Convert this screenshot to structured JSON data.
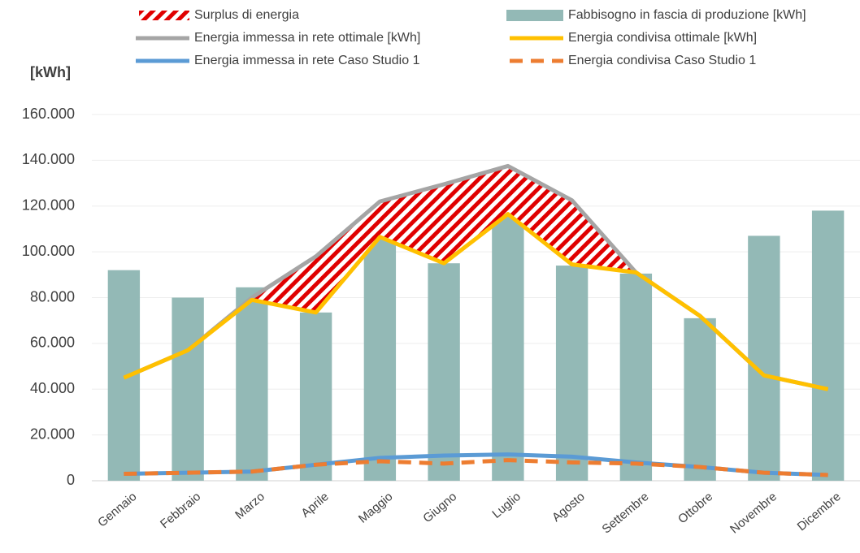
{
  "chart_data": {
    "type": "combo",
    "y_label": "[kWh]",
    "categories": [
      "Gennaio",
      "Febbraio",
      "Marzo",
      "Aprile",
      "Maggio",
      "Giugno",
      "Luglio",
      "Agosto",
      "Settembre",
      "Ottobre",
      "Novembre",
      "Dicembre"
    ],
    "series": [
      {
        "name": "Surplus di energia",
        "type": "area",
        "stacked_on": 3,
        "color": "#e00000",
        "values": [
          0,
          0,
          1000,
          24500,
          15500,
          34500,
          21000,
          28000,
          0,
          0,
          0,
          0
        ]
      },
      {
        "name": "Fabbisogno in fascia di produzione [kWh]",
        "type": "bar",
        "color": "#93b9b6",
        "values": [
          92000,
          80000,
          84500,
          73500,
          106500,
          95000,
          117000,
          94000,
          90500,
          71000,
          107000,
          118000
        ]
      },
      {
        "name": "Energia immessa in rete ottimale [kWh]",
        "type": "line",
        "color": "#a5a5a5",
        "values": [
          45000,
          57000,
          80000,
          98000,
          122000,
          129500,
          137500,
          122500,
          91000,
          72000,
          46000,
          40000
        ]
      },
      {
        "name": "Energia condivisa ottimale [kWh]",
        "type": "line",
        "color": "#ffc000",
        "values": [
          45000,
          57000,
          79000,
          73500,
          106500,
          95000,
          116500,
          94500,
          91000,
          72000,
          46000,
          40000
        ]
      },
      {
        "name": "Energia immessa in rete Caso Studio 1",
        "type": "line",
        "color": "#5b9bd5",
        "values": [
          3000,
          3500,
          4000,
          7000,
          10000,
          11000,
          11500,
          10500,
          8000,
          6000,
          3500,
          2500
        ]
      },
      {
        "name": "Energia condivisa Caso Studio 1",
        "type": "dashed",
        "color": "#ed7d31",
        "values": [
          3000,
          3500,
          4000,
          7000,
          8500,
          7500,
          9000,
          8000,
          7500,
          6000,
          3500,
          2500
        ]
      }
    ],
    "ylim": [
      0,
      160000
    ],
    "yticks": [
      0,
      {
        "value": 20000,
        "label": "20.000"
      },
      {
        "value": 40000,
        "label": "40.000"
      },
      {
        "value": 60000,
        "label": "60.000"
      },
      {
        "value": 80000,
        "label": "80.000"
      },
      {
        "value": 100000,
        "label": "100.000"
      },
      {
        "value": 120000,
        "label": "120.000"
      },
      {
        "value": 140000,
        "label": "140.000"
      },
      {
        "value": 160000,
        "label": "160.000"
      }
    ],
    "grid": true
  }
}
